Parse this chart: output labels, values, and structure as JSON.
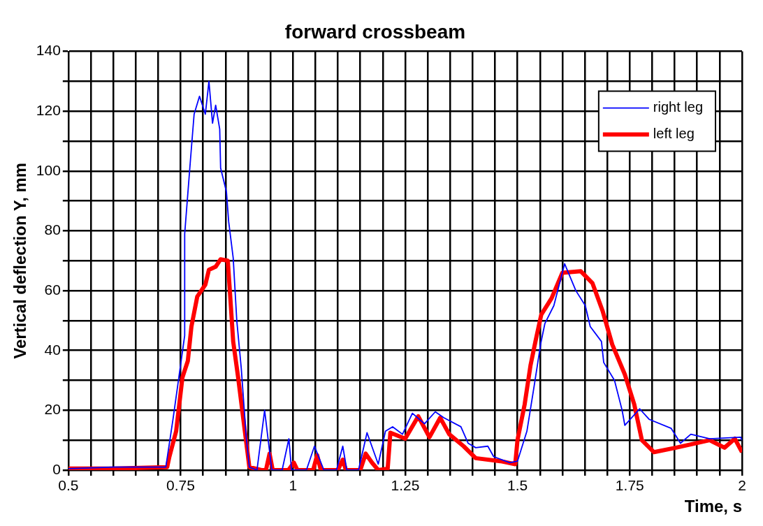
{
  "chart_data": {
    "type": "line",
    "title": "forward crossbeam",
    "xlabel": "Time, s",
    "ylabel": "Vertical deflection Y, mm",
    "xlim": [
      0.5,
      2
    ],
    "ylim": [
      0,
      140
    ],
    "xticks": [
      0.5,
      {
        "value": 0.55,
        "label": null
      },
      {
        "value": 0.6,
        "label": null
      },
      {
        "value": 0.65,
        "label": null
      },
      {
        "value": 0.7,
        "label": null
      },
      0.75,
      {
        "value": 0.8,
        "label": null
      },
      {
        "value": 0.85,
        "label": null
      },
      {
        "value": 0.9,
        "label": null
      },
      {
        "value": 0.95,
        "label": null
      },
      1,
      {
        "value": 1.05,
        "label": null
      },
      {
        "value": 1.1,
        "label": null
      },
      {
        "value": 1.15,
        "label": null
      },
      {
        "value": 1.2,
        "label": null
      },
      1.25,
      {
        "value": 1.3,
        "label": null
      },
      {
        "value": 1.35,
        "label": null
      },
      {
        "value": 1.4,
        "label": null
      },
      {
        "value": 1.45,
        "label": null
      },
      1.5,
      {
        "value": 1.55,
        "label": null
      },
      {
        "value": 1.6,
        "label": null
      },
      {
        "value": 1.65,
        "label": null
      },
      {
        "value": 1.7,
        "label": null
      },
      1.75,
      {
        "value": 1.8,
        "label": null
      },
      {
        "value": 1.85,
        "label": null
      },
      {
        "value": 1.9,
        "label": null
      },
      {
        "value": 1.95,
        "label": null
      },
      2
    ],
    "yticks": [
      0,
      {
        "value": 10,
        "label": null
      },
      20,
      {
        "value": 30,
        "label": null
      },
      40,
      {
        "value": 50,
        "label": null
      },
      60,
      {
        "value": 70,
        "label": null
      },
      80,
      {
        "value": 90,
        "label": null
      },
      100,
      {
        "value": 110,
        "label": null
      },
      120,
      {
        "value": 130,
        "label": null
      },
      140
    ],
    "grid": true,
    "legend": "top right",
    "line_style": "solid",
    "marker": "none",
    "series": [
      {
        "name": "right leg",
        "color": "#0000ff",
        "x": [
          0.5,
          0.6,
          0.717,
          0.733,
          0.759,
          0.759,
          0.772,
          0.78,
          0.792,
          0.805,
          0.813,
          0.821,
          0.828,
          0.837,
          0.839,
          0.852,
          0.857,
          0.867,
          0.875,
          0.885,
          0.896,
          0.903,
          0.92,
          0.937,
          0.953,
          0.976,
          0.991,
          0.997,
          1.03,
          1.048,
          1.069,
          1.097,
          1.111,
          1.12,
          1.146,
          1.165,
          1.19,
          1.206,
          1.222,
          1.244,
          1.266,
          1.293,
          1.317,
          1.336,
          1.374,
          1.39,
          1.407,
          1.434,
          1.447,
          1.483,
          1.5,
          1.521,
          1.537,
          1.552,
          1.561,
          1.581,
          1.605,
          1.63,
          1.651,
          1.662,
          1.687,
          1.692,
          1.716,
          1.733,
          1.739,
          1.772,
          1.793,
          1.842,
          1.863,
          1.886,
          1.928,
          1.997,
          2
        ],
        "values": [
          0.5,
          1,
          1,
          17,
          45,
          79,
          104,
          119,
          125,
          119,
          130,
          116,
          122,
          114,
          101,
          93,
          83,
          71,
          50,
          34,
          11,
          1,
          0,
          20,
          0,
          0,
          10.5,
          0,
          0,
          8,
          0,
          0,
          8,
          0,
          0,
          12.5,
          2,
          13,
          14.5,
          12,
          19,
          15.5,
          19.5,
          17.5,
          14.5,
          9,
          7.5,
          8,
          4.5,
          2.5,
          3,
          13,
          28,
          42.5,
          49,
          55,
          69,
          60,
          55,
          48,
          43,
          36,
          30,
          20,
          15,
          20.5,
          17,
          14,
          9,
          12,
          10.5,
          11,
          10
        ]
      },
      {
        "name": "left leg",
        "color": "#ff0000",
        "x": [
          0.5,
          0.6,
          0.72,
          0.725,
          0.74,
          0.754,
          0.766,
          0.774,
          0.787,
          0.805,
          0.813,
          0.828,
          0.839,
          0.855,
          0.86,
          0.867,
          0.878,
          0.893,
          0.903,
          0.93,
          0.94,
          0.948,
          0.955,
          0.99,
          1.002,
          1.01,
          1.045,
          1.054,
          1.062,
          1.1,
          1.111,
          1.118,
          1.15,
          1.162,
          1.176,
          1.19,
          1.211,
          1.217,
          1.25,
          1.279,
          1.304,
          1.328,
          1.348,
          1.38,
          1.407,
          1.462,
          1.495,
          1.5,
          1.516,
          1.529,
          1.54,
          1.553,
          1.576,
          1.6,
          1.641,
          1.667,
          1.69,
          1.711,
          1.739,
          1.76,
          1.777,
          1.804,
          1.853,
          1.928,
          1.961,
          1.984,
          2
        ],
        "values": [
          0.5,
          0.5,
          1,
          4.5,
          13,
          31,
          36.5,
          48,
          58,
          62,
          67,
          68,
          70.5,
          70,
          59,
          43,
          31,
          13,
          1,
          0,
          0,
          5.5,
          0,
          0,
          2.5,
          0,
          0,
          5,
          0,
          0,
          3.5,
          0,
          0,
          5.5,
          2.5,
          0,
          0.5,
          12.5,
          10.5,
          18,
          11,
          17.5,
          12,
          8,
          4,
          3,
          2,
          10,
          22,
          35,
          43,
          52,
          57.5,
          66,
          66.5,
          62.5,
          53,
          42,
          32,
          22,
          10,
          6,
          7.5,
          10,
          7.5,
          10.5,
          6
        ]
      }
    ]
  }
}
